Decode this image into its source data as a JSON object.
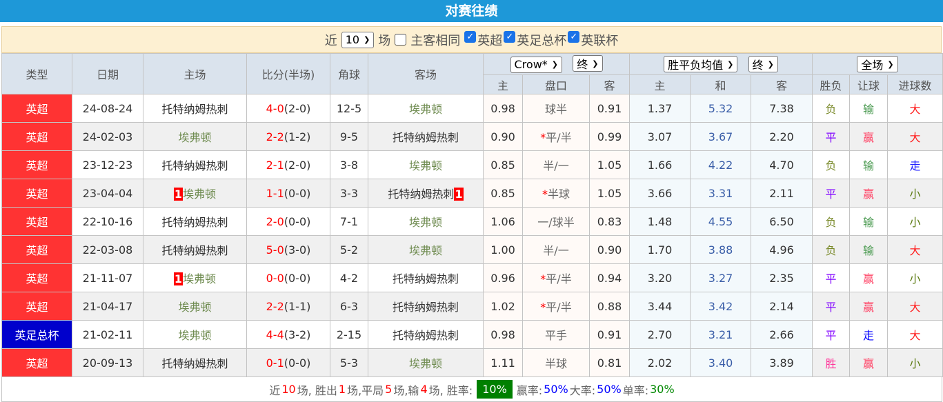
{
  "title": "对赛往绩",
  "filter": {
    "near": "近",
    "count": "10",
    "unit": "场",
    "same_label": "主客相同",
    "same_checked": false,
    "leagues": [
      {
        "label": "英超",
        "checked": true
      },
      {
        "label": "英足总杯",
        "checked": true
      },
      {
        "label": "英联杯",
        "checked": true
      }
    ]
  },
  "headers": {
    "type": "类型",
    "date": "日期",
    "home": "主场",
    "score": "比分(半场)",
    "corner": "角球",
    "away": "客场",
    "company": "Crow*",
    "company_state": "终",
    "odds_type": "胜平负均值",
    "odds_state": "终",
    "scope": "全场",
    "sub": [
      "主",
      "盘口",
      "客",
      "主",
      "和",
      "客",
      "胜负",
      "让球",
      "进球数"
    ]
  },
  "colors": {
    "epl": "#ff3333",
    "facup": "#0000cc",
    "home_team": "#333333",
    "away_team": "#6d8a4e"
  },
  "rows": [
    {
      "league": "英超",
      "date": "24-08-24",
      "home": "托特纳姆热刺",
      "home_red": "",
      "ft": "4-0",
      "ht": "(2-0)",
      "corner": "12-5",
      "away": "埃弗顿",
      "away_red": "",
      "h": "0.98",
      "line": "球半",
      "star": false,
      "a": "0.91",
      "o1": "1.37",
      "ox": "5.32",
      "o2": "7.38",
      "res": "负",
      "hres": "输",
      "ou": "大"
    },
    {
      "league": "英超",
      "date": "24-02-03",
      "home": "埃弗顿",
      "home_red": "",
      "ft": "2-2",
      "ht": "(1-2)",
      "corner": "9-5",
      "away": "托特纳姆热刺",
      "away_red": "",
      "h": "0.90",
      "line": "平/半",
      "star": true,
      "a": "0.99",
      "o1": "3.07",
      "ox": "3.67",
      "o2": "2.20",
      "res": "平",
      "hres": "赢",
      "ou": "大"
    },
    {
      "league": "英超",
      "date": "23-12-23",
      "home": "托特纳姆热刺",
      "home_red": "",
      "ft": "2-1",
      "ht": "(2-0)",
      "corner": "3-8",
      "away": "埃弗顿",
      "away_red": "",
      "h": "0.85",
      "line": "半/一",
      "star": false,
      "a": "1.05",
      "o1": "1.66",
      "ox": "4.22",
      "o2": "4.70",
      "res": "负",
      "hres": "输",
      "ou": "走"
    },
    {
      "league": "英超",
      "date": "23-04-04",
      "home": "埃弗顿",
      "home_red": "1",
      "ft": "1-1",
      "ht": "(0-0)",
      "corner": "3-3",
      "away": "托特纳姆热刺",
      "away_red": "1",
      "h": "0.85",
      "line": "半球",
      "star": true,
      "a": "1.05",
      "o1": "3.66",
      "ox": "3.31",
      "o2": "2.11",
      "res": "平",
      "hres": "赢",
      "ou": "小"
    },
    {
      "league": "英超",
      "date": "22-10-16",
      "home": "托特纳姆热刺",
      "home_red": "",
      "ft": "2-0",
      "ht": "(0-0)",
      "corner": "7-1",
      "away": "埃弗顿",
      "away_red": "",
      "h": "1.06",
      "line": "一/球半",
      "star": false,
      "a": "0.83",
      "o1": "1.48",
      "ox": "4.55",
      "o2": "6.50",
      "res": "负",
      "hres": "输",
      "ou": "小"
    },
    {
      "league": "英超",
      "date": "22-03-08",
      "home": "托特纳姆热刺",
      "home_red": "",
      "ft": "5-0",
      "ht": "(3-0)",
      "corner": "5-2",
      "away": "埃弗顿",
      "away_red": "",
      "h": "1.00",
      "line": "半/一",
      "star": false,
      "a": "0.90",
      "o1": "1.70",
      "ox": "3.88",
      "o2": "4.96",
      "res": "负",
      "hres": "输",
      "ou": "大"
    },
    {
      "league": "英超",
      "date": "21-11-07",
      "home": "埃弗顿",
      "home_red": "1",
      "ft": "0-0",
      "ht": "(0-0)",
      "corner": "4-2",
      "away": "托特纳姆热刺",
      "away_red": "",
      "h": "0.96",
      "line": "平/半",
      "star": true,
      "a": "0.94",
      "o1": "3.20",
      "ox": "3.27",
      "o2": "2.35",
      "res": "平",
      "hres": "赢",
      "ou": "小"
    },
    {
      "league": "英超",
      "date": "21-04-17",
      "home": "埃弗顿",
      "home_red": "",
      "ft": "2-2",
      "ht": "(1-1)",
      "corner": "6-3",
      "away": "托特纳姆热刺",
      "away_red": "",
      "h": "1.02",
      "line": "平/半",
      "star": true,
      "a": "0.88",
      "o1": "3.44",
      "ox": "3.42",
      "o2": "2.14",
      "res": "平",
      "hres": "赢",
      "ou": "大"
    },
    {
      "league": "英足总杯",
      "date": "21-02-11",
      "home": "埃弗顿",
      "home_red": "",
      "ft": "4-4",
      "ht": "(3-2)",
      "corner": "2-15",
      "away": "托特纳姆热刺",
      "away_red": "",
      "h": "0.98",
      "line": "平手",
      "star": false,
      "a": "0.91",
      "o1": "2.70",
      "ox": "3.21",
      "o2": "2.66",
      "res": "平",
      "hres": "走",
      "ou": "大"
    },
    {
      "league": "英超",
      "date": "20-09-13",
      "home": "托特纳姆热刺",
      "home_red": "",
      "ft": "0-1",
      "ht": "(0-0)",
      "corner": "5-3",
      "away": "埃弗顿",
      "away_red": "",
      "h": "1.11",
      "line": "半球",
      "star": false,
      "a": "0.81",
      "o1": "2.02",
      "ox": "3.40",
      "o2": "3.89",
      "res": "胜",
      "hres": "赢",
      "ou": "小"
    }
  ],
  "footer": {
    "t1": "近",
    "n": "10",
    "t2": "场, 胜出",
    "w": "1",
    "t3": "场,平局",
    "d": "5",
    "t4": "场,输",
    "l": "4",
    "t5": "场, 胜率:",
    "win_rate": "10%",
    "t6": "赢率:",
    "hwin": "50%",
    "t7": "大率:",
    "over": "50%",
    "t8": "单率:",
    "odd": "30%"
  }
}
